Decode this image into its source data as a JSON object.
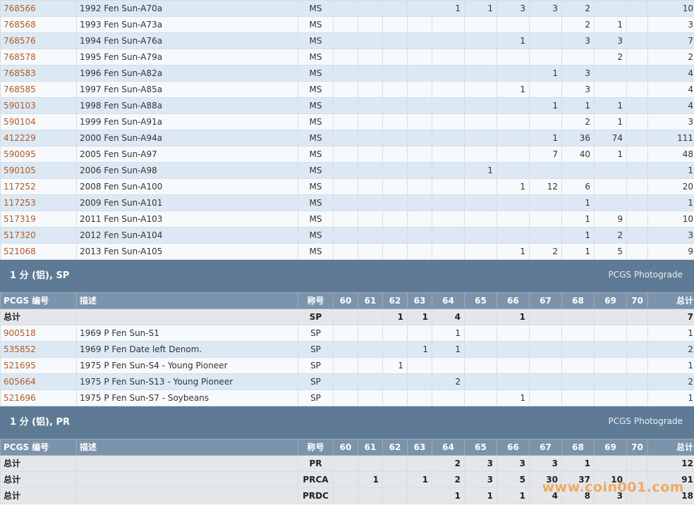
{
  "grade_headers": [
    "60",
    "61",
    "62",
    "63",
    "64",
    "65",
    "66",
    "67",
    "68",
    "69",
    "70"
  ],
  "header_labels": {
    "id": "PCGS 编号",
    "desc": "描述",
    "grade": "称号",
    "total": "总计"
  },
  "ms_rows": [
    {
      "id": "768566",
      "desc": "1992 Fen Sun-A70a",
      "grade": "MS",
      "counts": [
        "",
        "",
        "",
        "",
        "1",
        "1",
        "3",
        "3",
        "2",
        "",
        ""
      ],
      "total": "10"
    },
    {
      "id": "768568",
      "desc": "1993 Fen Sun-A73a",
      "grade": "MS",
      "counts": [
        "",
        "",
        "",
        "",
        "",
        "",
        "",
        "",
        "2",
        "1",
        ""
      ],
      "total": "3"
    },
    {
      "id": "768576",
      "desc": "1994 Fen Sun-A76a",
      "grade": "MS",
      "counts": [
        "",
        "",
        "",
        "",
        "",
        "",
        "1",
        "",
        "3",
        "3",
        ""
      ],
      "total": "7"
    },
    {
      "id": "768578",
      "desc": "1995 Fen Sun-A79a",
      "grade": "MS",
      "counts": [
        "",
        "",
        "",
        "",
        "",
        "",
        "",
        "",
        "",
        "2",
        ""
      ],
      "total": "2"
    },
    {
      "id": "768583",
      "desc": "1996 Fen Sun-A82a",
      "grade": "MS",
      "counts": [
        "",
        "",
        "",
        "",
        "",
        "",
        "",
        "1",
        "3",
        "",
        ""
      ],
      "total": "4"
    },
    {
      "id": "768585",
      "desc": "1997 Fen Sun-A85a",
      "grade": "MS",
      "counts": [
        "",
        "",
        "",
        "",
        "",
        "",
        "1",
        "",
        "3",
        "",
        ""
      ],
      "total": "4"
    },
    {
      "id": "590103",
      "desc": "1998 Fen Sun-A88a",
      "grade": "MS",
      "counts": [
        "",
        "",
        "",
        "",
        "",
        "",
        "",
        "1",
        "1",
        "1",
        ""
      ],
      "total": "4"
    },
    {
      "id": "590104",
      "desc": "1999 Fen Sun-A91a",
      "grade": "MS",
      "counts": [
        "",
        "",
        "",
        "",
        "",
        "",
        "",
        "",
        "2",
        "1",
        ""
      ],
      "total": "3"
    },
    {
      "id": "412229",
      "desc": "2000 Fen Sun-A94a",
      "grade": "MS",
      "counts": [
        "",
        "",
        "",
        "",
        "",
        "",
        "",
        "1",
        "36",
        "74",
        ""
      ],
      "total": "111"
    },
    {
      "id": "590095",
      "desc": "2005 Fen Sun-A97",
      "grade": "MS",
      "counts": [
        "",
        "",
        "",
        "",
        "",
        "",
        "",
        "7",
        "40",
        "1",
        ""
      ],
      "total": "48"
    },
    {
      "id": "590105",
      "desc": "2006 Fen Sun-A98",
      "grade": "MS",
      "counts": [
        "",
        "",
        "",
        "",
        "",
        "1",
        "",
        "",
        "",
        "",
        ""
      ],
      "total": "1"
    },
    {
      "id": "117252",
      "desc": "2008 Fen Sun-A100",
      "grade": "MS",
      "counts": [
        "",
        "",
        "",
        "",
        "",
        "",
        "1",
        "12",
        "6",
        "",
        ""
      ],
      "total": "20"
    },
    {
      "id": "117253",
      "desc": "2009 Fen Sun-A101",
      "grade": "MS",
      "counts": [
        "",
        "",
        "",
        "",
        "",
        "",
        "",
        "",
        "1",
        "",
        ""
      ],
      "total": "1"
    },
    {
      "id": "517319",
      "desc": "2011 Fen Sun-A103",
      "grade": "MS",
      "counts": [
        "",
        "",
        "",
        "",
        "",
        "",
        "",
        "",
        "1",
        "9",
        ""
      ],
      "total": "10"
    },
    {
      "id": "517320",
      "desc": "2012 Fen Sun-A104",
      "grade": "MS",
      "counts": [
        "",
        "",
        "",
        "",
        "",
        "",
        "",
        "",
        "1",
        "2",
        ""
      ],
      "total": "3"
    },
    {
      "id": "521068",
      "desc": "2013 Fen Sun-A105",
      "grade": "MS",
      "counts": [
        "",
        "",
        "",
        "",
        "",
        "",
        "1",
        "2",
        "1",
        "5",
        ""
      ],
      "total": "9"
    }
  ],
  "sp_section": {
    "title": "1 分 (铝), SP",
    "photograde": "PCGS Photograde",
    "total_row": {
      "label": "总计",
      "desc": "",
      "grade": "SP",
      "counts": [
        "",
        "",
        "1",
        "1",
        "4",
        "",
        "1",
        "",
        "",
        "",
        ""
      ],
      "total": "7"
    },
    "rows": [
      {
        "id": "900518",
        "desc": "1969 P Fen Sun-S1",
        "grade": "SP",
        "counts": [
          "",
          "",
          "",
          "",
          "1",
          "",
          "",
          "",
          "",
          "",
          ""
        ],
        "total": "1"
      },
      {
        "id": "535852",
        "desc": "1969 P Fen Date left Denom.",
        "grade": "SP",
        "counts": [
          "",
          "",
          "",
          "1",
          "1",
          "",
          "",
          "",
          "",
          "",
          ""
        ],
        "total": "2"
      },
      {
        "id": "521695",
        "desc": "1975 P Fen Sun-S4 - Young Pioneer",
        "grade": "SP",
        "counts": [
          "",
          "",
          "1",
          "",
          "",
          "",
          "",
          "",
          "",
          "",
          ""
        ],
        "total": "1"
      },
      {
        "id": "605664",
        "desc": "1975 P Fen Sun-S13 - Young Pioneer",
        "grade": "SP",
        "counts": [
          "",
          "",
          "",
          "",
          "2",
          "",
          "",
          "",
          "",
          "",
          ""
        ],
        "total": "2"
      },
      {
        "id": "521696",
        "desc": "1975 P Fen Sun-S7 - Soybeans",
        "grade": "SP",
        "counts": [
          "",
          "",
          "",
          "",
          "",
          "",
          "1",
          "",
          "",
          "",
          ""
        ],
        "total": "1"
      }
    ]
  },
  "pr_section": {
    "title": "1 分 (铝), PR",
    "photograde": "PCGS Photograde",
    "total_rows": [
      {
        "label": "总计",
        "desc": "",
        "grade": "PR",
        "counts": [
          "",
          "",
          "",
          "",
          "2",
          "3",
          "3",
          "3",
          "1",
          "",
          ""
        ],
        "total": "12"
      },
      {
        "label": "总计",
        "desc": "",
        "grade": "PRCA",
        "counts": [
          "",
          "1",
          "",
          "1",
          "2",
          "3",
          "5",
          "30",
          "37",
          "10",
          ""
        ],
        "total": "91"
      },
      {
        "label": "总计",
        "desc": "",
        "grade": "PRDC",
        "counts": [
          "",
          "",
          "",
          "",
          "1",
          "1",
          "1",
          "4",
          "8",
          "3",
          ""
        ],
        "total": "18"
      }
    ]
  },
  "watermark": "www.coin001.com"
}
